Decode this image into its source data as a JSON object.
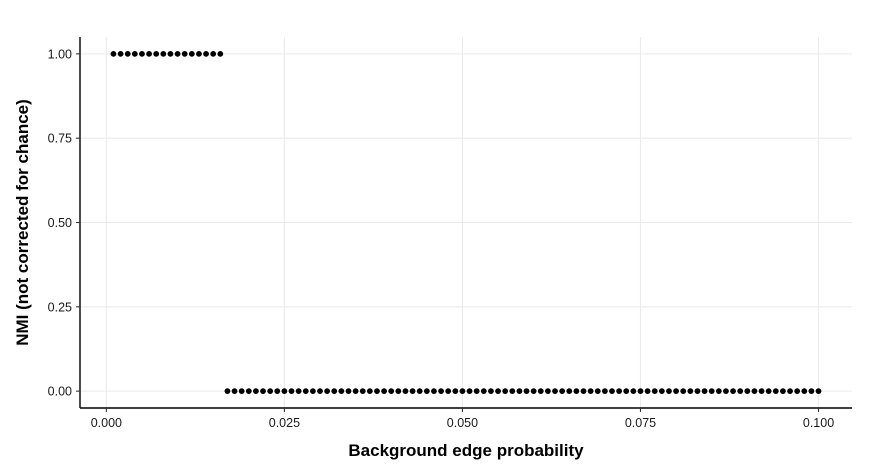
{
  "chart_data": {
    "type": "scatter",
    "xlabel": "Background edge probability",
    "ylabel": "NMI (not corrected for chance)",
    "xlim": [
      -0.0037,
      0.1047
    ],
    "ylim": [
      -0.05,
      1.05
    ],
    "xticks": [
      0.0,
      0.025,
      0.05,
      0.075,
      0.1
    ],
    "xtick_labels": [
      "0.000",
      "0.025",
      "0.050",
      "0.075",
      "0.100"
    ],
    "yticks": [
      0.0,
      0.25,
      0.5,
      0.75,
      1.0
    ],
    "ytick_labels": [
      "0.00",
      "0.25",
      "0.50",
      "0.75",
      "1.00"
    ],
    "grid": true,
    "point_color": "#000000",
    "series": [
      {
        "x": [
          0.001,
          0.002,
          0.003,
          0.004,
          0.005,
          0.006,
          0.007,
          0.008,
          0.009,
          0.01,
          0.011,
          0.012,
          0.013,
          0.014,
          0.015,
          0.016,
          0.017,
          0.018,
          0.019,
          0.02,
          0.021,
          0.022,
          0.023,
          0.024,
          0.025,
          0.026,
          0.027,
          0.028,
          0.029,
          0.03,
          0.031,
          0.032,
          0.033,
          0.034,
          0.035,
          0.036,
          0.037,
          0.038,
          0.039,
          0.04,
          0.041,
          0.042,
          0.043,
          0.044,
          0.045,
          0.046,
          0.047,
          0.048,
          0.049,
          0.05,
          0.051,
          0.052,
          0.053,
          0.054,
          0.055,
          0.056,
          0.057,
          0.058,
          0.059,
          0.06,
          0.061,
          0.062,
          0.063,
          0.064,
          0.065,
          0.066,
          0.067,
          0.068,
          0.069,
          0.07,
          0.071,
          0.072,
          0.073,
          0.074,
          0.075,
          0.076,
          0.077,
          0.078,
          0.079,
          0.08,
          0.081,
          0.082,
          0.083,
          0.084,
          0.085,
          0.086,
          0.087,
          0.088,
          0.089,
          0.09,
          0.091,
          0.092,
          0.093,
          0.094,
          0.095,
          0.096,
          0.097,
          0.098,
          0.099,
          0.1
        ],
        "y": [
          1,
          1,
          1,
          1,
          1,
          1,
          1,
          1,
          1,
          1,
          1,
          1,
          1,
          1,
          1,
          1,
          0,
          0,
          0,
          0,
          0,
          0,
          0,
          0,
          0,
          0,
          0,
          0,
          0,
          0,
          0,
          0,
          0,
          0,
          0,
          0,
          0,
          0,
          0,
          0,
          0,
          0,
          0,
          0,
          0,
          0,
          0,
          0,
          0,
          0,
          0,
          0,
          0,
          0,
          0,
          0,
          0,
          0,
          0,
          0,
          0,
          0,
          0,
          0,
          0,
          0,
          0,
          0,
          0,
          0,
          0,
          0,
          0,
          0,
          0,
          0,
          0,
          0,
          0,
          0,
          0,
          0,
          0,
          0,
          0,
          0,
          0,
          0,
          0,
          0,
          0,
          0,
          0,
          0,
          0,
          0,
          0,
          0,
          0,
          0
        ]
      }
    ]
  }
}
